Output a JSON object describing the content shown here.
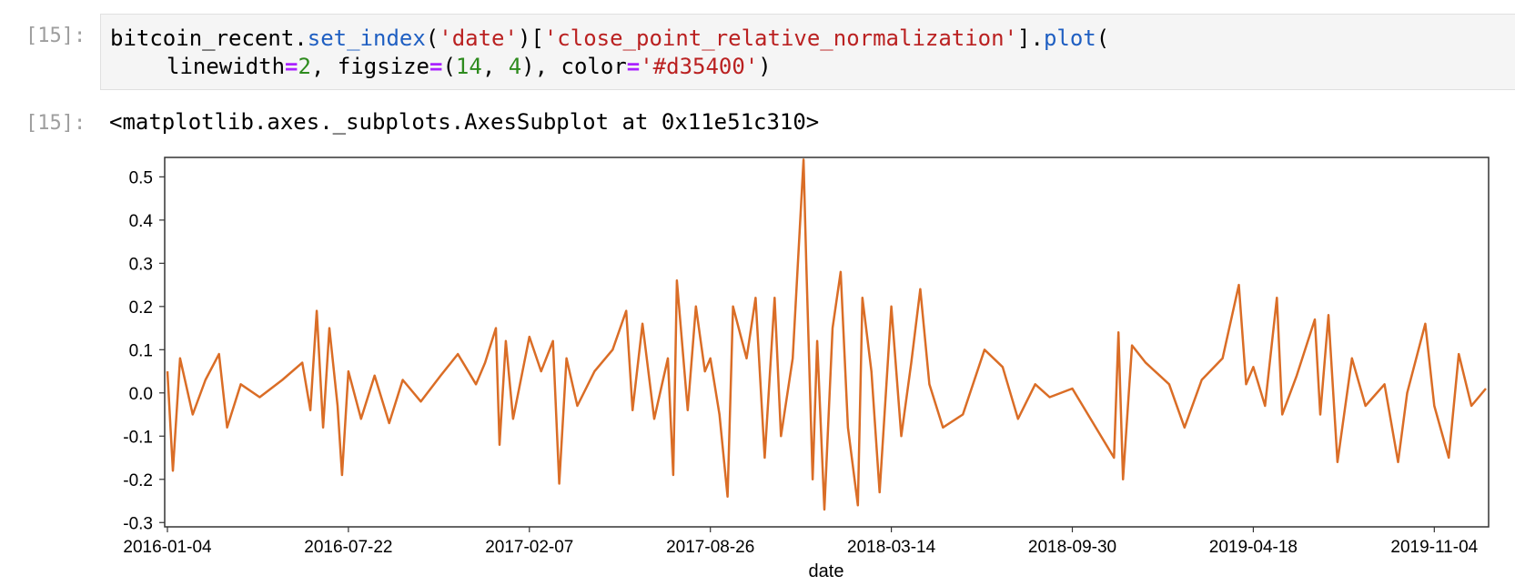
{
  "input_cell": {
    "prompt": "[15]:",
    "line1": {
      "p1": "bitcoin_recent.",
      "p2": "set_index",
      "p3": "(",
      "p4": "'date'",
      "p5": ")[",
      "p6": "'close_point_relative_normalization'",
      "p7": "].",
      "p8": "plot",
      "p9": "("
    },
    "line2": {
      "p1": "linewidth",
      "p2": "=",
      "p3": "2",
      "p4": ", figsize",
      "p5": "=",
      "p6": "(",
      "p7": "14",
      "p8": ", ",
      "p9": "4",
      "p10": "), color",
      "p11": "=",
      "p12": "'#d35400'",
      "p13": ")"
    }
  },
  "output_cell": {
    "prompt": "[15]:",
    "text": "<matplotlib.axes._subplots.AxesSubplot at 0x11e51c310>"
  },
  "colors": {
    "line": "#d35400",
    "method": "#1f5fc2",
    "string": "#ba2121",
    "number": "#2e8b1e",
    "operator": "#aa22ff"
  },
  "chart_data": {
    "type": "line",
    "xlabel": "date",
    "ylabel": "",
    "title": "",
    "ylim": [
      -0.31,
      0.545
    ],
    "yticks": [
      0.5,
      0.4,
      0.3,
      0.2,
      0.1,
      0.0,
      -0.1,
      -0.2,
      -0.3
    ],
    "ytick_labels": [
      "0.5",
      "0.4",
      "0.3",
      "0.2",
      "0.1",
      "0.0",
      "-0.1",
      "-0.2",
      "-0.3"
    ],
    "xticks": [
      "2016-01-04",
      "2016-07-22",
      "2017-02-07",
      "2017-08-26",
      "2018-03-14",
      "2018-09-30",
      "2019-04-18",
      "2019-11-04"
    ],
    "x_range": [
      "2016-01-04",
      "2019-12-31"
    ],
    "series": [
      {
        "points": [
          [
            "2016-01-04",
            0.05
          ],
          [
            "2016-01-10",
            -0.18
          ],
          [
            "2016-01-18",
            0.08
          ],
          [
            "2016-02-01",
            -0.05
          ],
          [
            "2016-02-15",
            0.03
          ],
          [
            "2016-03-01",
            0.09
          ],
          [
            "2016-03-10",
            -0.08
          ],
          [
            "2016-03-25",
            0.02
          ],
          [
            "2016-04-15",
            -0.01
          ],
          [
            "2016-05-10",
            0.03
          ],
          [
            "2016-06-01",
            0.07
          ],
          [
            "2016-06-10",
            -0.04
          ],
          [
            "2016-06-17",
            0.19
          ],
          [
            "2016-06-24",
            -0.08
          ],
          [
            "2016-07-01",
            0.15
          ],
          [
            "2016-07-10",
            -0.03
          ],
          [
            "2016-07-15",
            -0.19
          ],
          [
            "2016-07-22",
            0.05
          ],
          [
            "2016-08-05",
            -0.06
          ],
          [
            "2016-08-20",
            0.04
          ],
          [
            "2016-09-05",
            -0.07
          ],
          [
            "2016-09-20",
            0.03
          ],
          [
            "2016-10-10",
            -0.02
          ],
          [
            "2016-11-01",
            0.04
          ],
          [
            "2016-11-20",
            0.09
          ],
          [
            "2016-12-10",
            0.02
          ],
          [
            "2016-12-20",
            0.07
          ],
          [
            "2017-01-01",
            0.15
          ],
          [
            "2017-01-05",
            -0.12
          ],
          [
            "2017-01-12",
            0.12
          ],
          [
            "2017-01-20",
            -0.06
          ],
          [
            "2017-02-07",
            0.13
          ],
          [
            "2017-02-20",
            0.05
          ],
          [
            "2017-03-05",
            0.12
          ],
          [
            "2017-03-12",
            -0.21
          ],
          [
            "2017-03-20",
            0.08
          ],
          [
            "2017-04-01",
            -0.03
          ],
          [
            "2017-04-20",
            0.05
          ],
          [
            "2017-05-10",
            0.1
          ],
          [
            "2017-05-25",
            0.19
          ],
          [
            "2017-06-01",
            -0.04
          ],
          [
            "2017-06-12",
            0.16
          ],
          [
            "2017-06-25",
            -0.06
          ],
          [
            "2017-07-10",
            0.08
          ],
          [
            "2017-07-16",
            -0.19
          ],
          [
            "2017-07-20",
            0.26
          ],
          [
            "2017-08-01",
            -0.04
          ],
          [
            "2017-08-10",
            0.2
          ],
          [
            "2017-08-20",
            0.05
          ],
          [
            "2017-08-26",
            0.08
          ],
          [
            "2017-09-05",
            -0.05
          ],
          [
            "2017-09-14",
            -0.24
          ],
          [
            "2017-09-20",
            0.2
          ],
          [
            "2017-10-05",
            0.08
          ],
          [
            "2017-10-15",
            0.22
          ],
          [
            "2017-10-25",
            -0.15
          ],
          [
            "2017-11-05",
            0.22
          ],
          [
            "2017-11-12",
            -0.1
          ],
          [
            "2017-11-25",
            0.08
          ],
          [
            "2017-12-07",
            0.54
          ],
          [
            "2017-12-10",
            0.3
          ],
          [
            "2017-12-17",
            -0.2
          ],
          [
            "2017-12-22",
            0.12
          ],
          [
            "2017-12-30",
            -0.27
          ],
          [
            "2018-01-08",
            0.15
          ],
          [
            "2018-01-17",
            0.28
          ],
          [
            "2018-01-25",
            -0.08
          ],
          [
            "2018-02-05",
            -0.26
          ],
          [
            "2018-02-10",
            0.22
          ],
          [
            "2018-02-20",
            0.05
          ],
          [
            "2018-03-01",
            -0.23
          ],
          [
            "2018-03-14",
            0.2
          ],
          [
            "2018-03-25",
            -0.1
          ],
          [
            "2018-04-05",
            0.07
          ],
          [
            "2018-04-15",
            0.24
          ],
          [
            "2018-04-25",
            0.02
          ],
          [
            "2018-05-10",
            -0.08
          ],
          [
            "2018-06-01",
            -0.05
          ],
          [
            "2018-06-25",
            0.1
          ],
          [
            "2018-07-15",
            0.06
          ],
          [
            "2018-08-01",
            -0.06
          ],
          [
            "2018-08-20",
            0.02
          ],
          [
            "2018-09-05",
            -0.01
          ],
          [
            "2018-09-30",
            0.01
          ],
          [
            "2018-11-15",
            -0.15
          ],
          [
            "2018-11-20",
            0.14
          ],
          [
            "2018-11-25",
            -0.2
          ],
          [
            "2018-12-05",
            0.11
          ],
          [
            "2018-12-20",
            0.07
          ],
          [
            "2019-01-15",
            0.02
          ],
          [
            "2019-02-01",
            -0.08
          ],
          [
            "2019-02-20",
            0.03
          ],
          [
            "2019-03-15",
            0.08
          ],
          [
            "2019-04-02",
            0.25
          ],
          [
            "2019-04-10",
            0.02
          ],
          [
            "2019-04-18",
            0.06
          ],
          [
            "2019-05-01",
            -0.03
          ],
          [
            "2019-05-14",
            0.22
          ],
          [
            "2019-05-20",
            -0.05
          ],
          [
            "2019-06-05",
            0.04
          ],
          [
            "2019-06-25",
            0.17
          ],
          [
            "2019-07-01",
            -0.05
          ],
          [
            "2019-07-10",
            0.18
          ],
          [
            "2019-07-20",
            -0.16
          ],
          [
            "2019-08-05",
            0.08
          ],
          [
            "2019-08-20",
            -0.03
          ],
          [
            "2019-09-10",
            0.02
          ],
          [
            "2019-09-25",
            -0.16
          ],
          [
            "2019-10-05",
            0.0
          ],
          [
            "2019-10-25",
            0.16
          ],
          [
            "2019-11-04",
            -0.03
          ],
          [
            "2019-11-20",
            -0.15
          ],
          [
            "2019-12-01",
            0.09
          ],
          [
            "2019-12-15",
            -0.03
          ],
          [
            "2019-12-31",
            0.01
          ]
        ]
      }
    ]
  }
}
